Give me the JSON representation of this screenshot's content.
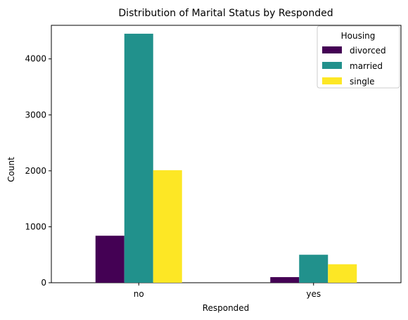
{
  "chart_data": {
    "type": "bar",
    "title": "Distribution of Marital Status by Responded",
    "xlabel": "Responded",
    "ylabel": "Count",
    "categories": [
      "no",
      "yes"
    ],
    "series": [
      {
        "name": "divorced",
        "color": "#440154",
        "values": [
          840,
          100
        ]
      },
      {
        "name": "married",
        "color": "#21918c",
        "values": [
          4450,
          500
        ]
      },
      {
        "name": "single",
        "color": "#fde725",
        "values": [
          2010,
          330
        ]
      }
    ],
    "ylim": [
      0,
      4600
    ],
    "yticks": [
      0,
      1000,
      2000,
      3000,
      4000
    ],
    "legend": {
      "title": "Housing",
      "position": "top-right"
    },
    "grid": false
  }
}
